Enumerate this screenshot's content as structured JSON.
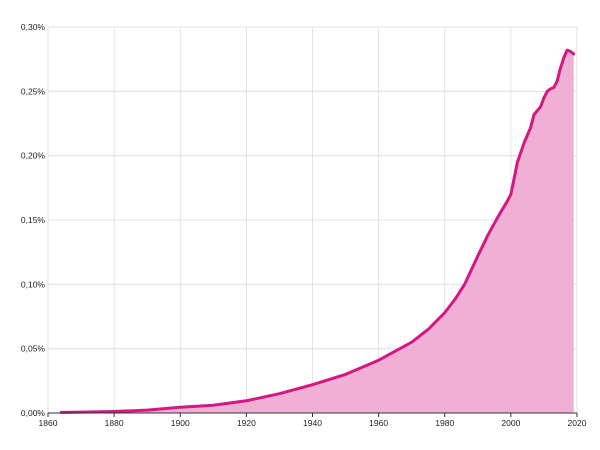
{
  "colors": {
    "line": "#d6177f",
    "area": "#f0b0d6",
    "grid": "#dcdcdc",
    "background": "#ffffff"
  },
  "chart_data": {
    "type": "area",
    "title": "",
    "xlabel": "",
    "ylabel": "",
    "xlim": [
      1860,
      2020
    ],
    "ylim": [
      0,
      0.3
    ],
    "grid": "on",
    "legend": "none",
    "x_ticks": [
      1860,
      1880,
      1900,
      1920,
      1940,
      1960,
      1980,
      2000,
      2020
    ],
    "x_tick_labels": [
      "1860",
      "1880",
      "1900",
      "1920",
      "1940",
      "1960",
      "1980",
      "2000",
      "2020"
    ],
    "y_ticks": [
      0,
      0.05,
      0.1,
      0.15,
      0.2,
      0.25,
      0.3
    ],
    "y_tick_labels": [
      "0,00%",
      "0,05%",
      "0,10%",
      "0,15%",
      "0,20%",
      "0,25%",
      "0,30%"
    ],
    "series": [
      {
        "x": [
          1864,
          1870,
          1880,
          1890,
          1900,
          1910,
          1920,
          1930,
          1940,
          1950,
          1960,
          1965,
          1970,
          1975,
          1980,
          1983,
          1986,
          1990,
          1993,
          1996,
          1999,
          2000,
          2002,
          2004,
          2006,
          2007,
          2008,
          2009,
          2010,
          2011,
          2012,
          2013,
          2014,
          2015,
          2016,
          2017,
          2018,
          2019
        ],
        "y": [
          0.0005,
          0.0007,
          0.0012,
          0.0022,
          0.0045,
          0.006,
          0.0095,
          0.015,
          0.022,
          0.03,
          0.041,
          0.048,
          0.055,
          0.065,
          0.078,
          0.088,
          0.1,
          0.122,
          0.138,
          0.152,
          0.165,
          0.17,
          0.195,
          0.21,
          0.222,
          0.232,
          0.235,
          0.238,
          0.245,
          0.25,
          0.252,
          0.253,
          0.258,
          0.268,
          0.276,
          0.282,
          0.281,
          0.279
        ]
      }
    ]
  }
}
